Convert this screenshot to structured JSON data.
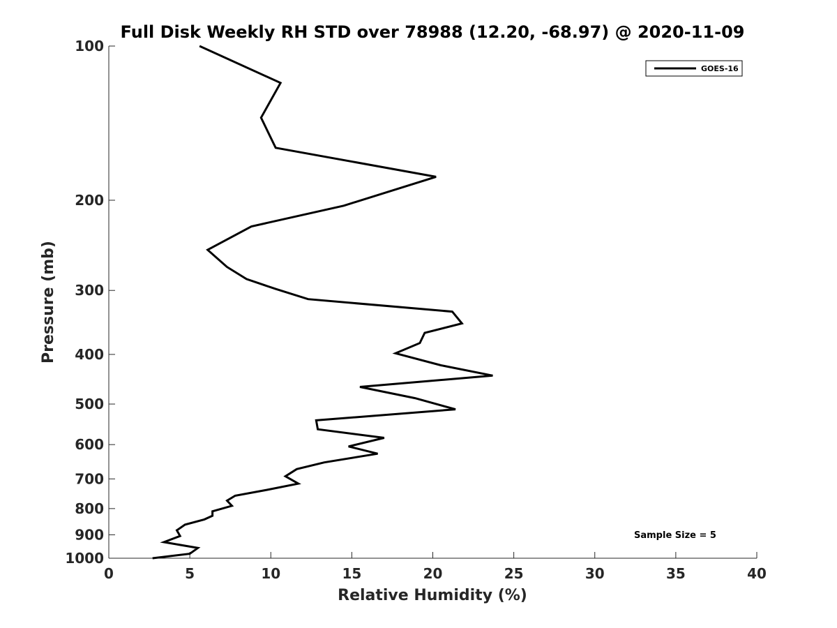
{
  "chart_data": {
    "type": "line",
    "title": "Full Disk Weekly RH STD over 78988 (12.20, -68.97) @ 2020-11-09",
    "xlabel": "Relative Humidity (%)",
    "ylabel": "Pressure (mb)",
    "xlim": [
      0,
      40
    ],
    "ylim": [
      100,
      1000
    ],
    "y_scale": "log",
    "y_inverted": true,
    "x_ticks": [
      "0",
      "5",
      "10",
      "15",
      "20",
      "25",
      "30",
      "35",
      "40"
    ],
    "y_ticks": [
      "100",
      "200",
      "300",
      "400",
      "500",
      "600",
      "700",
      "800",
      "900",
      "1000"
    ],
    "grid": false,
    "legend_position": "top-right",
    "series": [
      {
        "name": "GOES-16",
        "color": "#000000",
        "x": [
          5.6,
          10.6,
          9.4,
          10.3,
          20.2,
          14.5,
          8.8,
          6.1,
          7.3,
          8.5,
          10.3,
          12.3,
          21.2,
          21.8,
          19.5,
          19.2,
          17.7,
          20.5,
          23.7,
          15.5,
          18.9,
          21.4,
          12.8,
          12.9,
          17.0,
          14.8,
          16.6,
          13.3,
          11.6,
          10.9,
          11.7,
          9.8,
          7.8,
          7.3,
          7.6,
          6.4,
          6.4,
          5.9,
          4.7,
          4.2,
          4.4,
          3.4,
          5.5,
          5.0,
          2.7
        ],
        "y": [
          100,
          118,
          138,
          158,
          180,
          205,
          225,
          250,
          270,
          285,
          298,
          312,
          330,
          348,
          363,
          380,
          398,
          420,
          440,
          463,
          487,
          512,
          538,
          560,
          582,
          605,
          625,
          650,
          670,
          692,
          715,
          735,
          755,
          772,
          790,
          810,
          826,
          840,
          860,
          882,
          905,
          930,
          955,
          980,
          1000
        ]
      }
    ],
    "annotations": [
      "Sample Size = 5"
    ]
  }
}
